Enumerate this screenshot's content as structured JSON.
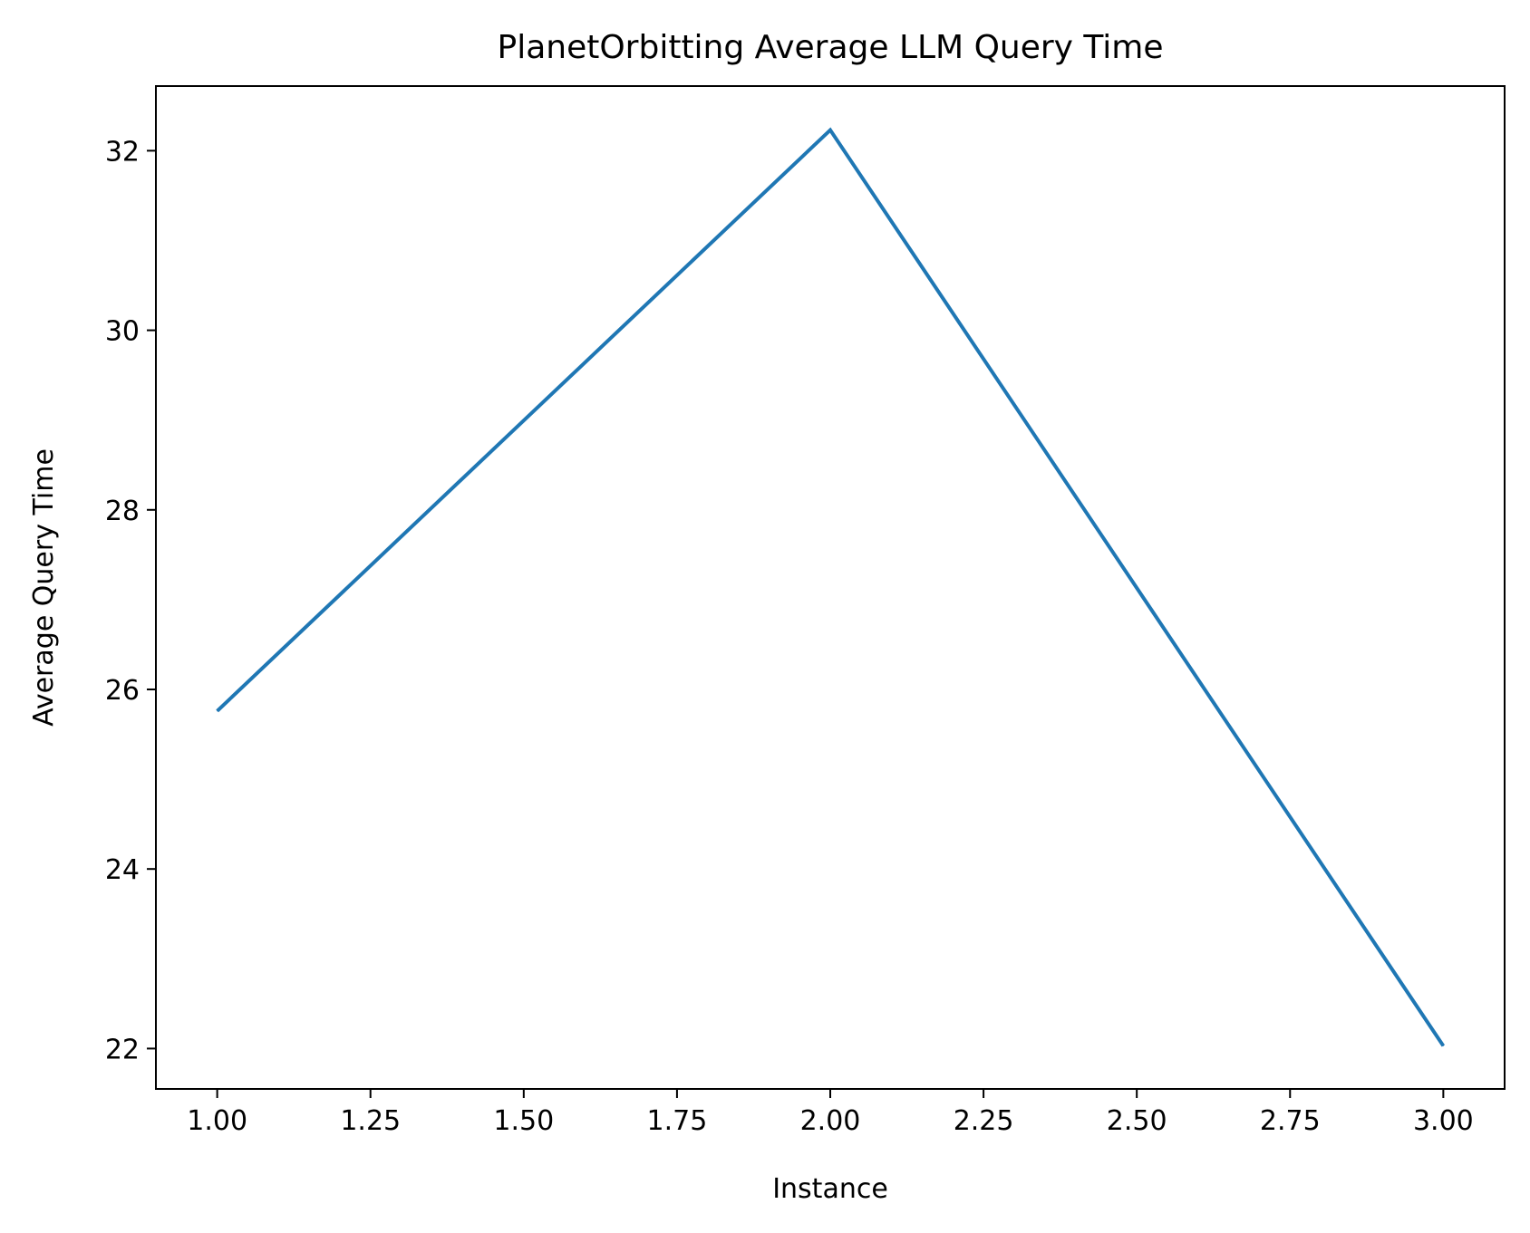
{
  "chart_data": {
    "type": "line",
    "title": "PlanetOrbitting Average LLM Query Time",
    "xlabel": "Instance",
    "ylabel": "Average Query Time",
    "xlim": [
      0.9,
      3.1
    ],
    "ylim": [
      21.55,
      32.72
    ],
    "x_ticks": [
      1.0,
      1.25,
      1.5,
      1.75,
      2.0,
      2.25,
      2.5,
      2.75,
      3.0
    ],
    "x_tick_labels": [
      "1.00",
      "1.25",
      "1.50",
      "1.75",
      "2.00",
      "2.25",
      "2.50",
      "2.75",
      "3.00"
    ],
    "y_ticks": [
      22,
      24,
      26,
      28,
      30,
      32
    ],
    "y_tick_labels": [
      "22",
      "24",
      "26",
      "28",
      "30",
      "32"
    ],
    "grid": false,
    "series": [
      {
        "x": [
          1,
          2,
          3
        ],
        "values": [
          25.76,
          32.23,
          22.03
        ],
        "color": "#1f77b4"
      }
    ]
  }
}
